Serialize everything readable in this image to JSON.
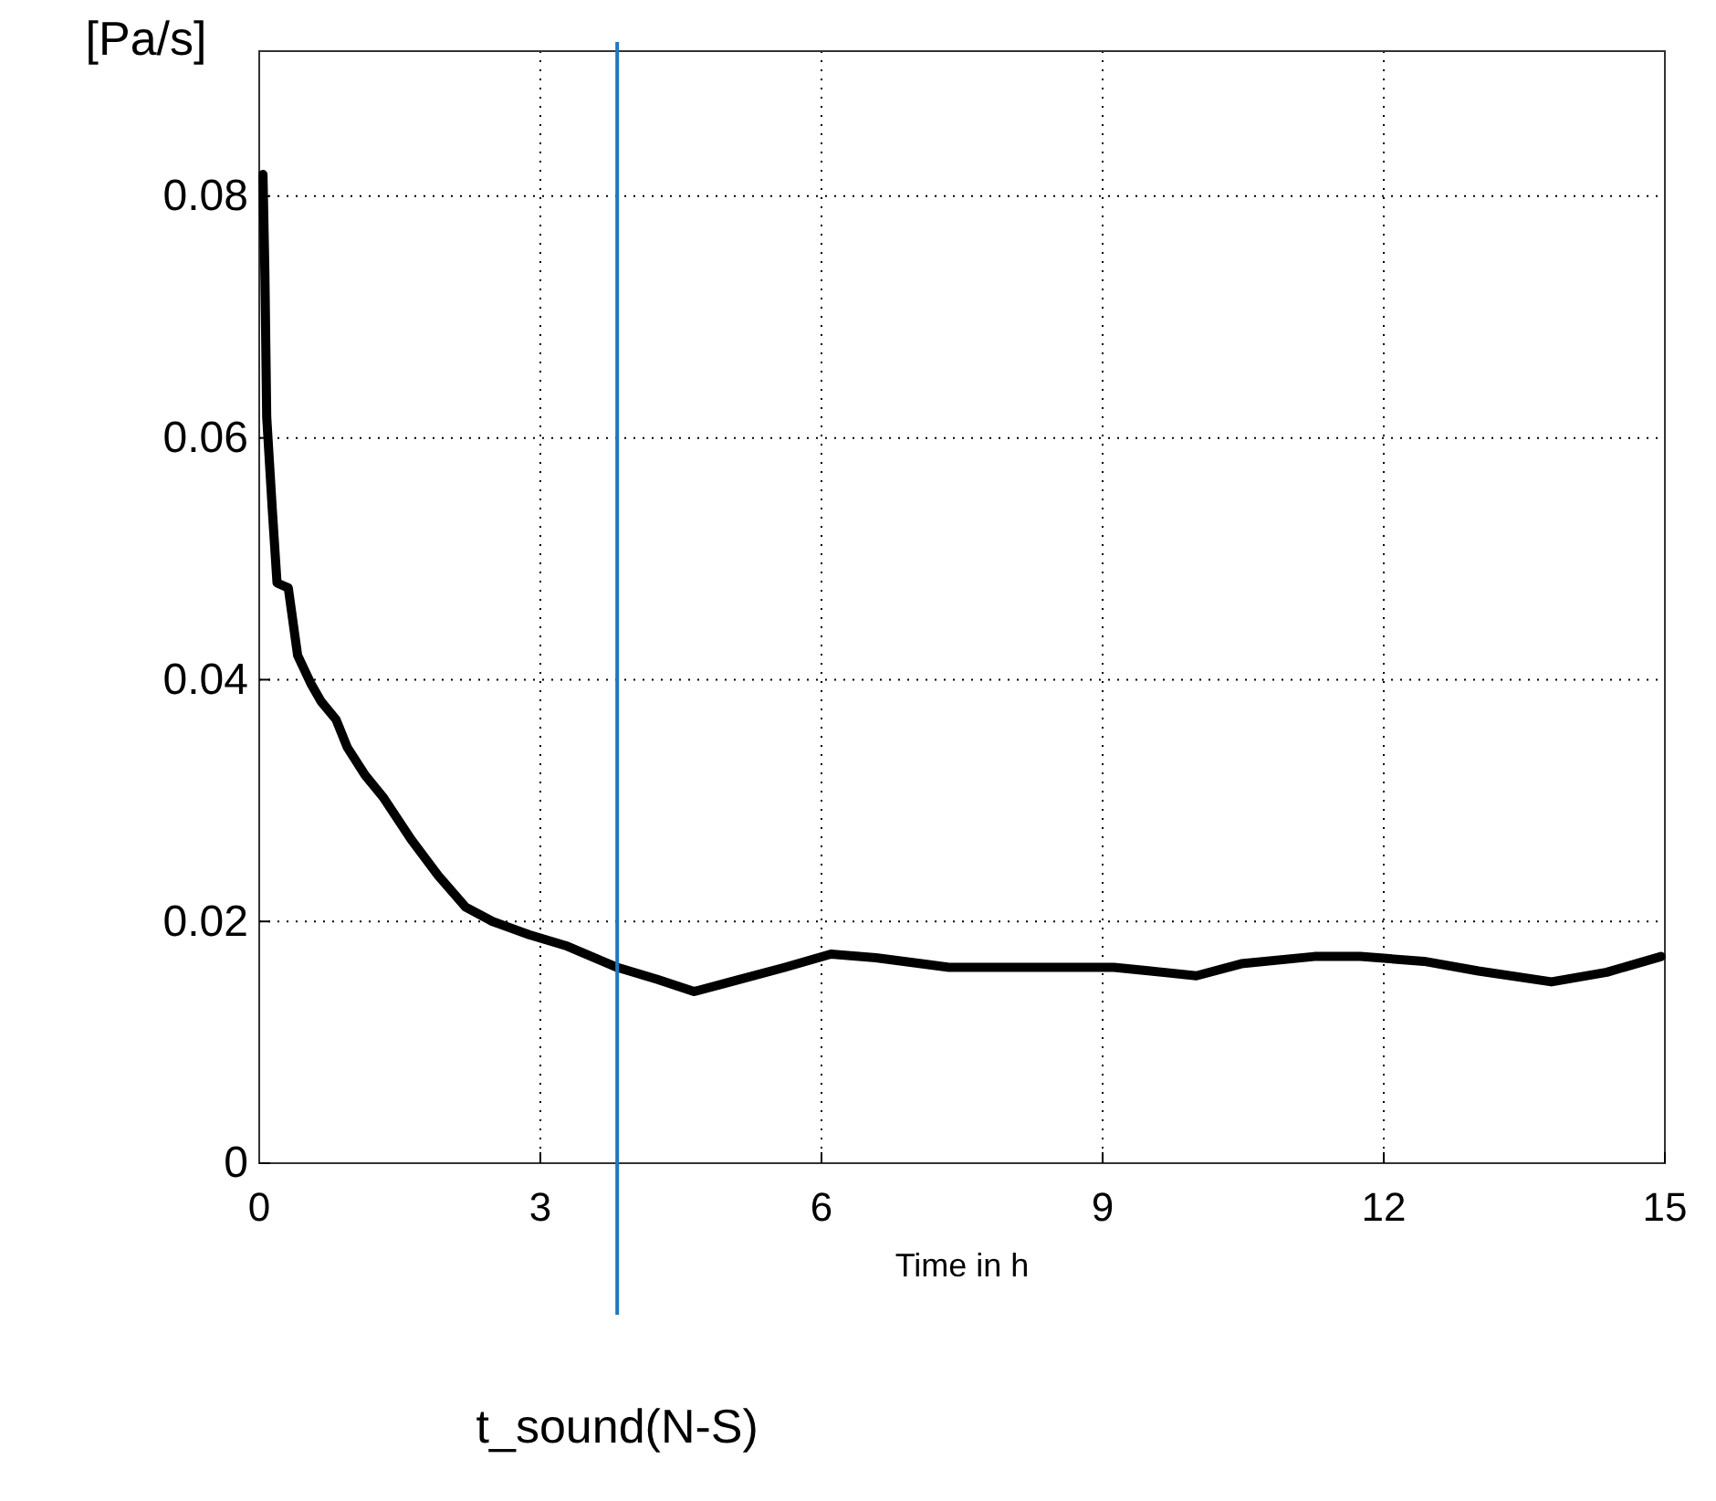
{
  "chart_data": {
    "type": "line",
    "ylabel": "[Pa/s]",
    "xlabel": "Time in h",
    "xlim": [
      0,
      15
    ],
    "xticks": [
      0,
      3,
      6,
      9,
      12,
      15
    ],
    "ylim": [
      0,
      0.092
    ],
    "yticks": [
      0,
      0.02,
      0.04,
      0.06,
      0.08
    ],
    "grid": true,
    "line_style": "solid",
    "series": [
      {
        "color": "#000000",
        "x": [
          0.04,
          0.06,
          0.08,
          0.14,
          0.19,
          0.31,
          0.41,
          0.55,
          0.66,
          0.82,
          0.94,
          1.13,
          1.32,
          1.62,
          1.91,
          2.2,
          2.49,
          2.88,
          3.27,
          3.82,
          4.25,
          4.64,
          5.03,
          5.61,
          6.1,
          6.58,
          7.36,
          8.34,
          9.12,
          9.51,
          10.0,
          10.48,
          11.26,
          11.75,
          12.43,
          13.01,
          13.79,
          14.38,
          14.96
        ],
        "values": [
          0.0818,
          0.0738,
          0.0617,
          0.054,
          0.048,
          0.0476,
          0.042,
          0.0397,
          0.0382,
          0.0367,
          0.0344,
          0.0321,
          0.0303,
          0.0268,
          0.0238,
          0.0212,
          0.02,
          0.0189,
          0.018,
          0.0162,
          0.0152,
          0.0142,
          0.015,
          0.0162,
          0.0173,
          0.017,
          0.0162,
          0.0162,
          0.0162,
          0.0159,
          0.0155,
          0.0165,
          0.0171,
          0.0171,
          0.0167,
          0.0159,
          0.015,
          0.0158,
          0.0171
        ]
      }
    ],
    "ref_lines": [
      {
        "axis": "x",
        "value": 3.82,
        "label": "t_sound(N-S)",
        "color": "#1f77c0"
      }
    ]
  }
}
